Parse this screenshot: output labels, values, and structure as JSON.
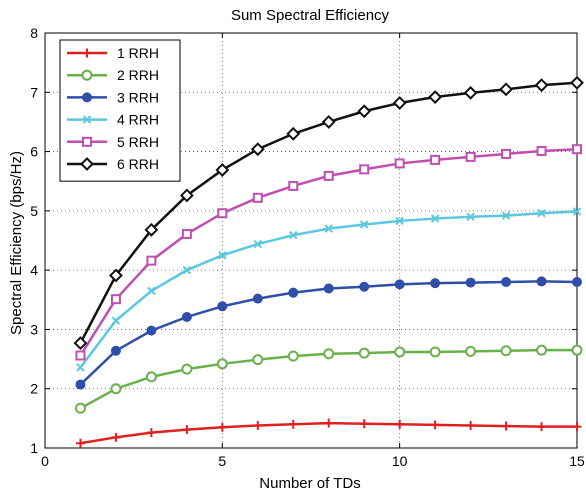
{
  "chart_data": {
    "type": "line",
    "title": "Sum Spectral Efficiency",
    "xlabel": "Number of TDs",
    "ylabel": "Spectral Efficiency (bps/Hz)",
    "xlim": [
      0,
      15
    ],
    "ylim": [
      1,
      8
    ],
    "xticks": [
      0,
      5,
      10,
      15
    ],
    "yticks": [
      1,
      2,
      3,
      4,
      5,
      6,
      7,
      8
    ],
    "grid": true,
    "legend_position": "top-left",
    "x": [
      1,
      2,
      3,
      4,
      5,
      6,
      7,
      8,
      9,
      10,
      11,
      12,
      13,
      14,
      15
    ],
    "series": [
      {
        "name": "1 RRH",
        "color": "#e02020",
        "marker": "plus",
        "values": [
          1.08,
          1.18,
          1.26,
          1.31,
          1.35,
          1.38,
          1.4,
          1.42,
          1.41,
          1.4,
          1.39,
          1.38,
          1.37,
          1.36,
          1.36
        ]
      },
      {
        "name": "2 RRH",
        "color": "#6ab04c",
        "marker": "circle-open",
        "values": [
          1.67,
          2.0,
          2.2,
          2.33,
          2.42,
          2.49,
          2.55,
          2.59,
          2.6,
          2.62,
          2.62,
          2.63,
          2.64,
          2.65,
          2.65
        ]
      },
      {
        "name": "3 RRH",
        "color": "#2f4fa8",
        "marker": "circle-filled",
        "values": [
          2.07,
          2.64,
          2.98,
          3.21,
          3.39,
          3.52,
          3.62,
          3.69,
          3.72,
          3.76,
          3.78,
          3.79,
          3.8,
          3.81,
          3.8
        ]
      },
      {
        "name": "4 RRH",
        "color": "#5bc8e0",
        "marker": "x",
        "values": [
          2.36,
          3.15,
          3.65,
          4.0,
          4.25,
          4.44,
          4.59,
          4.7,
          4.77,
          4.83,
          4.87,
          4.9,
          4.92,
          4.96,
          4.99
        ]
      },
      {
        "name": "5 RRH",
        "color": "#c04fb0",
        "marker": "square-open",
        "values": [
          2.56,
          3.51,
          4.16,
          4.61,
          4.96,
          5.22,
          5.42,
          5.59,
          5.7,
          5.8,
          5.86,
          5.91,
          5.96,
          6.01,
          6.04
        ]
      },
      {
        "name": "6 RRH",
        "color": "#111111",
        "marker": "diamond-open",
        "values": [
          2.77,
          3.91,
          4.68,
          5.26,
          5.69,
          6.04,
          6.3,
          6.5,
          6.68,
          6.82,
          6.92,
          6.99,
          7.05,
          7.12,
          7.16
        ]
      }
    ]
  }
}
